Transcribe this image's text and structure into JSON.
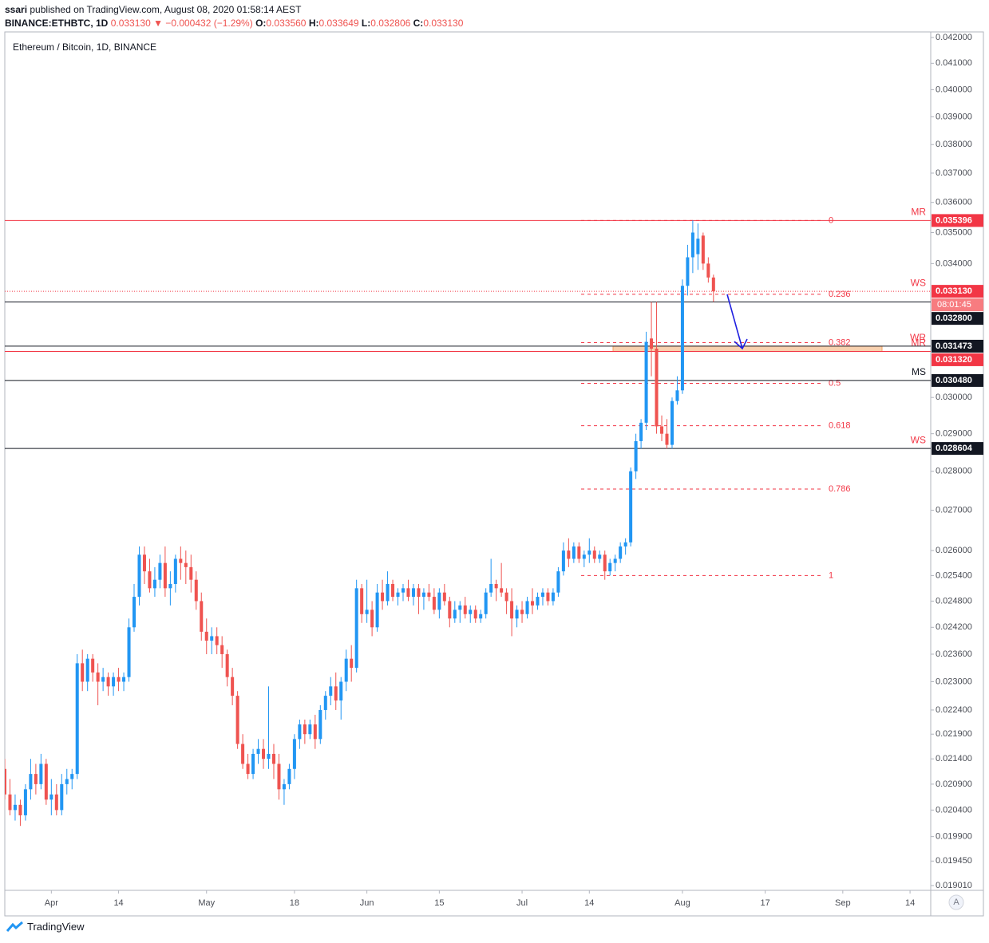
{
  "header": {
    "author": "ssari",
    "published": "published on TradingView.com, August 08, 2020 01:58:14 AEST",
    "symbol": "BINANCE:ETHBTC, 1D",
    "last": "0.033130",
    "change": "▼ −0.000432 (−1.29%)",
    "ohlc": [
      {
        "label": "O:",
        "value": "0.033560"
      },
      {
        "label": "H:",
        "value": "0.033649"
      },
      {
        "label": "L:",
        "value": "0.032806"
      },
      {
        "label": "C:",
        "value": "0.033130"
      }
    ]
  },
  "chart_data": {
    "type": "candlestick",
    "title": "Ethereum / Bitcoin, 1D, BINANCE",
    "up_color": "#2196f3",
    "down_color": "#ef5350",
    "ylog": true,
    "grid": false,
    "ylim": [
      0.018925,
      0.04222
    ],
    "xlim": [
      "2020-03-23",
      "2020-09-18"
    ],
    "yticks": [
      {
        "value": 0.042,
        "label": "0.042000"
      },
      {
        "value": 0.041,
        "label": "0.041000"
      },
      {
        "value": 0.04,
        "label": "0.040000"
      },
      {
        "value": 0.039,
        "label": "0.039000"
      },
      {
        "value": 0.038,
        "label": "0.038000"
      },
      {
        "value": 0.037,
        "label": "0.037000"
      },
      {
        "value": 0.036,
        "label": "0.036000"
      },
      {
        "value": 0.035,
        "label": "0.035000"
      },
      {
        "value": 0.034,
        "label": "0.034000"
      },
      {
        "value": 0.03,
        "label": "0.030000"
      },
      {
        "value": 0.029,
        "label": "0.029000"
      },
      {
        "value": 0.028,
        "label": "0.028000"
      },
      {
        "value": 0.027,
        "label": "0.027000"
      },
      {
        "value": 0.026,
        "label": "0.026000"
      },
      {
        "value": 0.0254,
        "label": "0.025400"
      },
      {
        "value": 0.0248,
        "label": "0.024800"
      },
      {
        "value": 0.0242,
        "label": "0.024200"
      },
      {
        "value": 0.0236,
        "label": "0.023600"
      },
      {
        "value": 0.023,
        "label": "0.023000"
      },
      {
        "value": 0.0224,
        "label": "0.022400"
      },
      {
        "value": 0.0219,
        "label": "0.021900"
      },
      {
        "value": 0.0214,
        "label": "0.021400"
      },
      {
        "value": 0.0209,
        "label": "0.020900"
      },
      {
        "value": 0.0204,
        "label": "0.020400"
      },
      {
        "value": 0.0199,
        "label": "0.019900"
      },
      {
        "value": 0.01945,
        "label": "0.019450"
      },
      {
        "value": 0.01901,
        "label": "0.019010"
      }
    ],
    "xticks": [
      {
        "value": "2020-04-01",
        "label": "Apr"
      },
      {
        "value": "2020-04-14",
        "label": "14"
      },
      {
        "value": "2020-05-01",
        "label": "May"
      },
      {
        "value": "2020-05-18",
        "label": "18"
      },
      {
        "value": "2020-06-01",
        "label": "Jun"
      },
      {
        "value": "2020-06-15",
        "label": "15"
      },
      {
        "value": "2020-07-01",
        "label": "Jul"
      },
      {
        "value": "2020-07-14",
        "label": "14"
      },
      {
        "value": "2020-08-01",
        "label": "Aug"
      },
      {
        "value": "2020-08-17",
        "label": "17"
      },
      {
        "value": "2020-09-01",
        "label": "Sep"
      },
      {
        "value": "2020-09-14",
        "label": "14"
      }
    ],
    "x": [
      "2020-03-23",
      "2020-03-24",
      "2020-03-25",
      "2020-03-26",
      "2020-03-27",
      "2020-03-28",
      "2020-03-29",
      "2020-03-30",
      "2020-03-31",
      "2020-04-01",
      "2020-04-02",
      "2020-04-03",
      "2020-04-04",
      "2020-04-05",
      "2020-04-06",
      "2020-04-07",
      "2020-04-08",
      "2020-04-09",
      "2020-04-10",
      "2020-04-11",
      "2020-04-12",
      "2020-04-13",
      "2020-04-14",
      "2020-04-15",
      "2020-04-16",
      "2020-04-17",
      "2020-04-18",
      "2020-04-19",
      "2020-04-20",
      "2020-04-21",
      "2020-04-22",
      "2020-04-23",
      "2020-04-24",
      "2020-04-25",
      "2020-04-26",
      "2020-04-27",
      "2020-04-28",
      "2020-04-29",
      "2020-04-30",
      "2020-05-01",
      "2020-05-02",
      "2020-05-03",
      "2020-05-04",
      "2020-05-05",
      "2020-05-06",
      "2020-05-07",
      "2020-05-08",
      "2020-05-09",
      "2020-05-10",
      "2020-05-11",
      "2020-05-12",
      "2020-05-13",
      "2020-05-14",
      "2020-05-15",
      "2020-05-16",
      "2020-05-17",
      "2020-05-18",
      "2020-05-19",
      "2020-05-20",
      "2020-05-21",
      "2020-05-22",
      "2020-05-23",
      "2020-05-24",
      "2020-05-25",
      "2020-05-26",
      "2020-05-27",
      "2020-05-28",
      "2020-05-29",
      "2020-05-30",
      "2020-05-31",
      "2020-06-01",
      "2020-06-02",
      "2020-06-03",
      "2020-06-04",
      "2020-06-05",
      "2020-06-06",
      "2020-06-07",
      "2020-06-08",
      "2020-06-09",
      "2020-06-10",
      "2020-06-11",
      "2020-06-12",
      "2020-06-13",
      "2020-06-14",
      "2020-06-15",
      "2020-06-16",
      "2020-06-17",
      "2020-06-18",
      "2020-06-19",
      "2020-06-20",
      "2020-06-21",
      "2020-06-22",
      "2020-06-23",
      "2020-06-24",
      "2020-06-25",
      "2020-06-26",
      "2020-06-27",
      "2020-06-28",
      "2020-06-29",
      "2020-06-30",
      "2020-07-01",
      "2020-07-02",
      "2020-07-03",
      "2020-07-04",
      "2020-07-05",
      "2020-07-06",
      "2020-07-07",
      "2020-07-08",
      "2020-07-09",
      "2020-07-10",
      "2020-07-11",
      "2020-07-12",
      "2020-07-13",
      "2020-07-14",
      "2020-07-15",
      "2020-07-16",
      "2020-07-17",
      "2020-07-18",
      "2020-07-19",
      "2020-07-20",
      "2020-07-21",
      "2020-07-22",
      "2020-07-23",
      "2020-07-24",
      "2020-07-25",
      "2020-07-26",
      "2020-07-27",
      "2020-07-28",
      "2020-07-29",
      "2020-07-30",
      "2020-07-31",
      "2020-08-01",
      "2020-08-02",
      "2020-08-03",
      "2020-08-04",
      "2020-08-05",
      "2020-08-06",
      "2020-08-07"
    ],
    "open": [
      0.0212,
      0.0207,
      0.0204,
      0.0205,
      0.0203,
      0.0208,
      0.0211,
      0.0209,
      0.0213,
      0.0206,
      0.0207,
      0.0204,
      0.0209,
      0.021,
      0.0211,
      0.0234,
      0.023,
      0.0235,
      0.0232,
      0.023,
      0.0231,
      0.0229,
      0.0231,
      0.023,
      0.0231,
      0.0242,
      0.0249,
      0.0259,
      0.0255,
      0.0251,
      0.0253,
      0.0257,
      0.0251,
      0.0252,
      0.0258,
      0.0257,
      0.0256,
      0.0253,
      0.0248,
      0.0241,
      0.0239,
      0.024,
      0.0238,
      0.0236,
      0.0231,
      0.0227,
      0.0217,
      0.0213,
      0.0211,
      0.0215,
      0.0216,
      0.0214,
      0.0215,
      0.0213,
      0.0208,
      0.0209,
      0.0212,
      0.0218,
      0.0221,
      0.0219,
      0.0221,
      0.0218,
      0.0224,
      0.0227,
      0.0229,
      0.0226,
      0.023,
      0.0235,
      0.0233,
      0.0251,
      0.0245,
      0.0246,
      0.0242,
      0.025,
      0.0248,
      0.0252,
      0.0249,
      0.025,
      0.0251,
      0.0249,
      0.0251,
      0.0249,
      0.025,
      0.0249,
      0.0246,
      0.025,
      0.0248,
      0.0244,
      0.0246,
      0.0247,
      0.0245,
      0.0246,
      0.0244,
      0.0245,
      0.025,
      0.0252,
      0.0251,
      0.025,
      0.0248,
      0.0244,
      0.0246,
      0.0245,
      0.0248,
      0.0247,
      0.0249,
      0.025,
      0.0248,
      0.025,
      0.0255,
      0.026,
      0.0258,
      0.0261,
      0.0258,
      0.0259,
      0.026,
      0.0258,
      0.0259,
      0.0255,
      0.0257,
      0.0258,
      0.0261,
      0.0262,
      0.028,
      0.0288,
      0.0293,
      0.0317,
      0.0314,
      0.0292,
      0.029,
      0.0287,
      0.0299,
      0.0302,
      0.0333,
      0.0342,
      0.0343,
      0.0349,
      0.034,
      0.03356
    ],
    "high": [
      0.0214,
      0.021,
      0.0207,
      0.0206,
      0.0209,
      0.0214,
      0.0213,
      0.0215,
      0.0214,
      0.021,
      0.0209,
      0.0211,
      0.0212,
      0.0212,
      0.0236,
      0.0237,
      0.0236,
      0.0236,
      0.0234,
      0.0233,
      0.0232,
      0.0232,
      0.0233,
      0.0232,
      0.0244,
      0.0252,
      0.0261,
      0.0261,
      0.0258,
      0.0256,
      0.0259,
      0.0261,
      0.0255,
      0.0259,
      0.0261,
      0.026,
      0.0259,
      0.0255,
      0.025,
      0.0244,
      0.0242,
      0.0242,
      0.024,
      0.0237,
      0.0233,
      0.0228,
      0.0219,
      0.0215,
      0.0216,
      0.0218,
      0.0218,
      0.0229,
      0.0217,
      0.0215,
      0.021,
      0.0213,
      0.0219,
      0.0222,
      0.0222,
      0.0222,
      0.0223,
      0.0225,
      0.0228,
      0.0231,
      0.0232,
      0.0231,
      0.0237,
      0.0238,
      0.0253,
      0.0252,
      0.0253,
      0.0248,
      0.0252,
      0.0253,
      0.0255,
      0.0253,
      0.0251,
      0.0252,
      0.0253,
      0.0252,
      0.0252,
      0.0251,
      0.0252,
      0.0251,
      0.0251,
      0.0252,
      0.0249,
      0.0248,
      0.0248,
      0.0249,
      0.0247,
      0.0247,
      0.0246,
      0.0251,
      0.0258,
      0.0253,
      0.0257,
      0.0251,
      0.0251,
      0.0247,
      0.0248,
      0.0249,
      0.0251,
      0.025,
      0.0251,
      0.0251,
      0.0251,
      0.0256,
      0.0262,
      0.0263,
      0.0262,
      0.0262,
      0.026,
      0.0263,
      0.0261,
      0.026,
      0.026,
      0.0258,
      0.0259,
      0.0262,
      0.0263,
      0.0281,
      0.029,
      0.0294,
      0.0319,
      0.0328,
      0.0328,
      0.0295,
      0.0294,
      0.03,
      0.0306,
      0.0335,
      0.0346,
      0.0354,
      0.0353,
      0.035,
      0.0342,
      0.033649
    ],
    "low": [
      0.0206,
      0.0203,
      0.0202,
      0.0201,
      0.0202,
      0.0206,
      0.0207,
      0.0208,
      0.0205,
      0.0203,
      0.0203,
      0.0203,
      0.0207,
      0.0208,
      0.021,
      0.0228,
      0.0228,
      0.023,
      0.0225,
      0.0228,
      0.0227,
      0.0227,
      0.0228,
      0.0228,
      0.023,
      0.0241,
      0.0247,
      0.0252,
      0.025,
      0.0249,
      0.0251,
      0.0249,
      0.0247,
      0.025,
      0.0253,
      0.0252,
      0.025,
      0.0246,
      0.0239,
      0.0236,
      0.0236,
      0.0236,
      0.0233,
      0.0229,
      0.0225,
      0.0216,
      0.0212,
      0.021,
      0.021,
      0.0213,
      0.0212,
      0.0212,
      0.021,
      0.0206,
      0.0205,
      0.0208,
      0.021,
      0.0216,
      0.0217,
      0.0218,
      0.0216,
      0.0217,
      0.0222,
      0.0225,
      0.0224,
      0.0222,
      0.0228,
      0.023,
      0.0232,
      0.0243,
      0.0243,
      0.024,
      0.0241,
      0.0246,
      0.0247,
      0.0248,
      0.0247,
      0.0248,
      0.0248,
      0.0247,
      0.0245,
      0.0246,
      0.0248,
      0.0245,
      0.0244,
      0.0247,
      0.0242,
      0.0243,
      0.0243,
      0.0244,
      0.0243,
      0.0243,
      0.0243,
      0.0244,
      0.0249,
      0.0248,
      0.0249,
      0.0245,
      0.024,
      0.0242,
      0.0243,
      0.0244,
      0.0245,
      0.0246,
      0.0247,
      0.0247,
      0.0247,
      0.0249,
      0.0254,
      0.0256,
      0.0257,
      0.0257,
      0.0256,
      0.0257,
      0.0257,
      0.0257,
      0.0253,
      0.0254,
      0.0255,
      0.0257,
      0.0259,
      0.0261,
      0.0278,
      0.0286,
      0.0291,
      0.0306,
      0.029,
      0.0288,
      0.0286,
      0.0286,
      0.0298,
      0.0301,
      0.033,
      0.0337,
      0.0338,
      0.0338,
      0.0334,
      0.032806
    ],
    "close": [
      0.0207,
      0.0204,
      0.0205,
      0.0203,
      0.0208,
      0.0211,
      0.0209,
      0.0213,
      0.0206,
      0.0207,
      0.0204,
      0.0209,
      0.021,
      0.0211,
      0.0234,
      0.023,
      0.0235,
      0.0232,
      0.023,
      0.0231,
      0.0229,
      0.0231,
      0.023,
      0.0231,
      0.0242,
      0.0249,
      0.0259,
      0.0255,
      0.0251,
      0.0253,
      0.0257,
      0.0251,
      0.0252,
      0.0258,
      0.0257,
      0.0256,
      0.0253,
      0.0248,
      0.0241,
      0.0239,
      0.024,
      0.0238,
      0.0236,
      0.0231,
      0.0227,
      0.0217,
      0.0213,
      0.0211,
      0.0215,
      0.0216,
      0.0214,
      0.0215,
      0.0213,
      0.0208,
      0.0209,
      0.0212,
      0.0218,
      0.0221,
      0.0219,
      0.0221,
      0.0218,
      0.0224,
      0.0227,
      0.0229,
      0.0226,
      0.023,
      0.0235,
      0.0233,
      0.0251,
      0.0245,
      0.0246,
      0.0242,
      0.025,
      0.0248,
      0.0252,
      0.0249,
      0.025,
      0.0251,
      0.0249,
      0.0251,
      0.0249,
      0.025,
      0.0249,
      0.0246,
      0.025,
      0.0248,
      0.0244,
      0.0246,
      0.0247,
      0.0245,
      0.0246,
      0.0244,
      0.0245,
      0.025,
      0.0252,
      0.0251,
      0.025,
      0.0248,
      0.0244,
      0.0246,
      0.0245,
      0.0248,
      0.0247,
      0.0249,
      0.025,
      0.0248,
      0.025,
      0.0255,
      0.026,
      0.0258,
      0.0261,
      0.0258,
      0.0259,
      0.026,
      0.0258,
      0.0259,
      0.0255,
      0.0257,
      0.0258,
      0.0261,
      0.0262,
      0.028,
      0.0288,
      0.0293,
      0.0316,
      0.0314,
      0.0292,
      0.029,
      0.0287,
      0.0299,
      0.0302,
      0.0333,
      0.0342,
      0.035,
      0.0348,
      0.034,
      0.03356,
      0.03313
    ],
    "levels": [
      {
        "value": 0.035396,
        "label": "0.035396",
        "color": "#f23645",
        "style": "solid",
        "tag": "MR",
        "tag_color": "#f23645"
      },
      {
        "value": 0.03313,
        "label": "0.033130",
        "color": "#f23645",
        "style": "dotted",
        "tag": "WS",
        "tag_color": "#f23645",
        "countdown": "08:01:45"
      },
      {
        "value": 0.0328,
        "label": "0.032800",
        "color": "#131722",
        "style": "solid"
      },
      {
        "value": 0.031473,
        "label": "0.031473",
        "color": "#131722",
        "style": "solid",
        "tag": "WR",
        "tag_color": "#f23645"
      },
      {
        "value": 0.03132,
        "label": "0.031320",
        "color": "#f23645",
        "style": "solid",
        "tag": "MR",
        "tag_color": "#f23645"
      },
      {
        "value": 0.03048,
        "label": "0.030480",
        "color": "#131722",
        "style": "solid",
        "tag": "MS",
        "tag_color": "#131722"
      },
      {
        "value": 0.028604,
        "label": "0.028604",
        "color": "#131722",
        "style": "solid",
        "tag": "WS",
        "tag_color": "#f23645"
      }
    ],
    "fib": {
      "high": 0.035396,
      "low": 0.0254,
      "color": "#f23645",
      "levels": [
        0,
        0.236,
        0.382,
        0.5,
        0.618,
        0.786,
        1
      ]
    },
    "autoscale": "A"
  },
  "footer": {
    "brand": "TradingView"
  }
}
